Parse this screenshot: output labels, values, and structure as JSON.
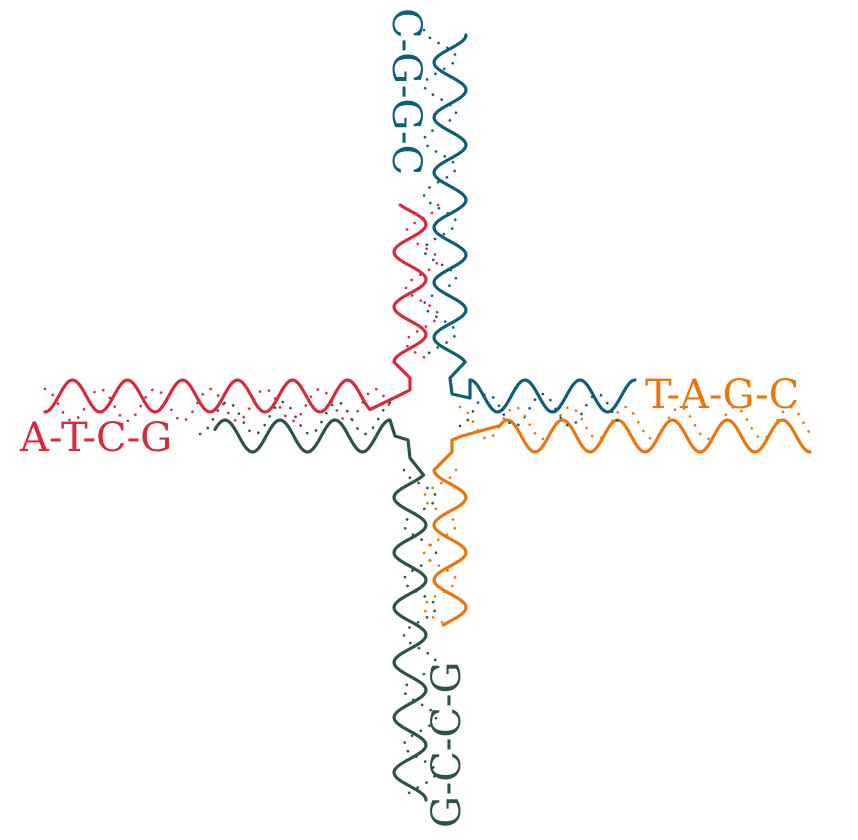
{
  "colors": {
    "red": "#d62b3f",
    "teal": "#0e5f75",
    "orange": "#e8770f",
    "darkgreen": "#2e5244",
    "background": "#ffffff"
  },
  "labels": {
    "left": "A-T-C-G",
    "right": "T-A-G-C",
    "top": "C-G-G-C",
    "bottom": "G-C-C-G"
  }
}
